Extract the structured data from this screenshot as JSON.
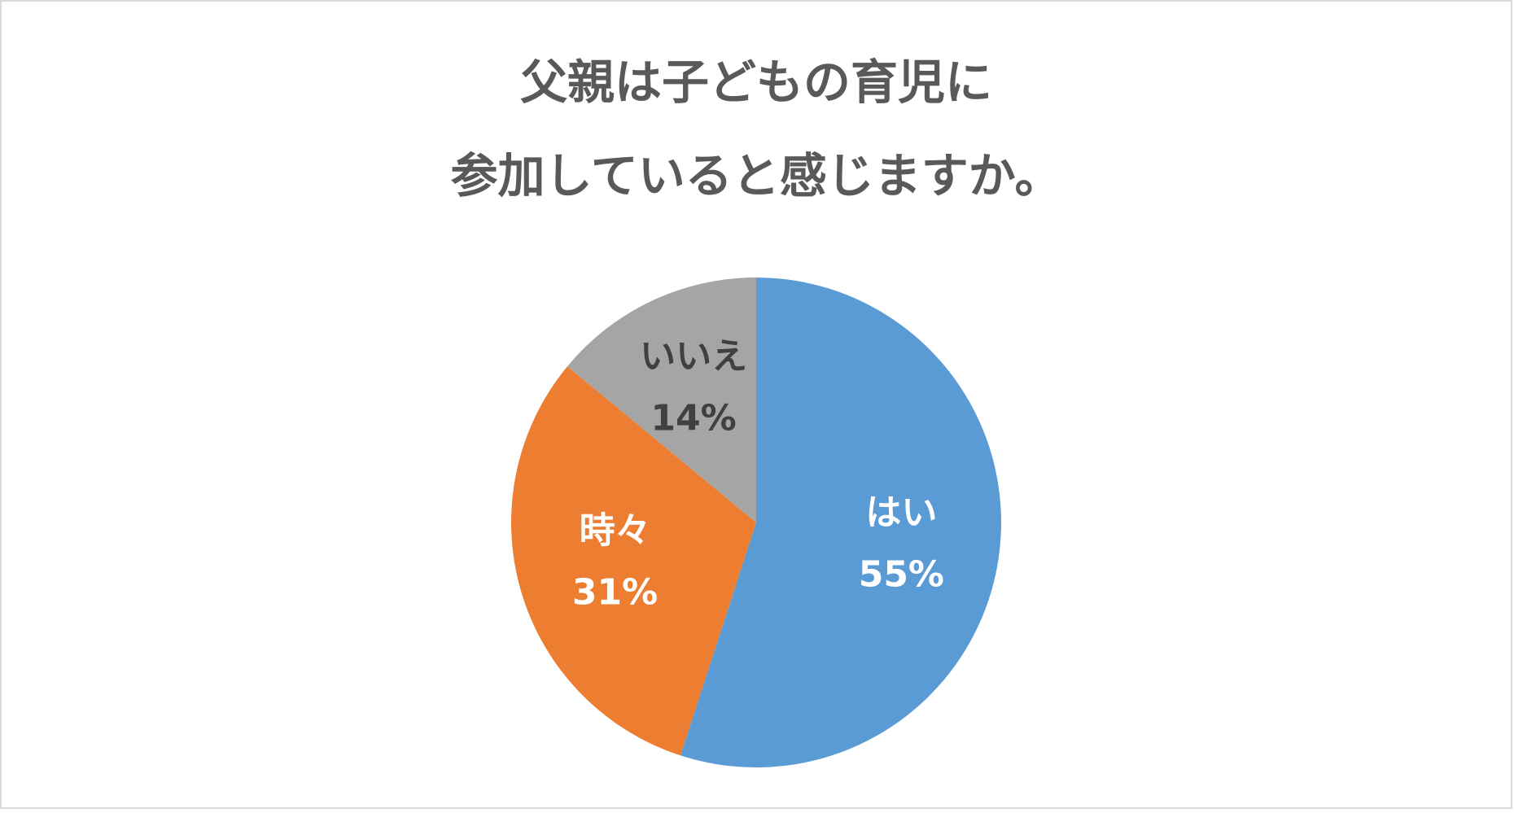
{
  "chart_data": {
    "type": "pie",
    "title": [
      "父親は子どもの育児に",
      "参加していると感じますか。"
    ],
    "categories": [
      "はい",
      "時々",
      "いいえ"
    ],
    "values": [
      55,
      31,
      14
    ],
    "value_labels": [
      "55%",
      "31%",
      "14%"
    ],
    "colors": [
      "#5b9bd5",
      "#ed7d31",
      "#a5a5a5"
    ]
  }
}
